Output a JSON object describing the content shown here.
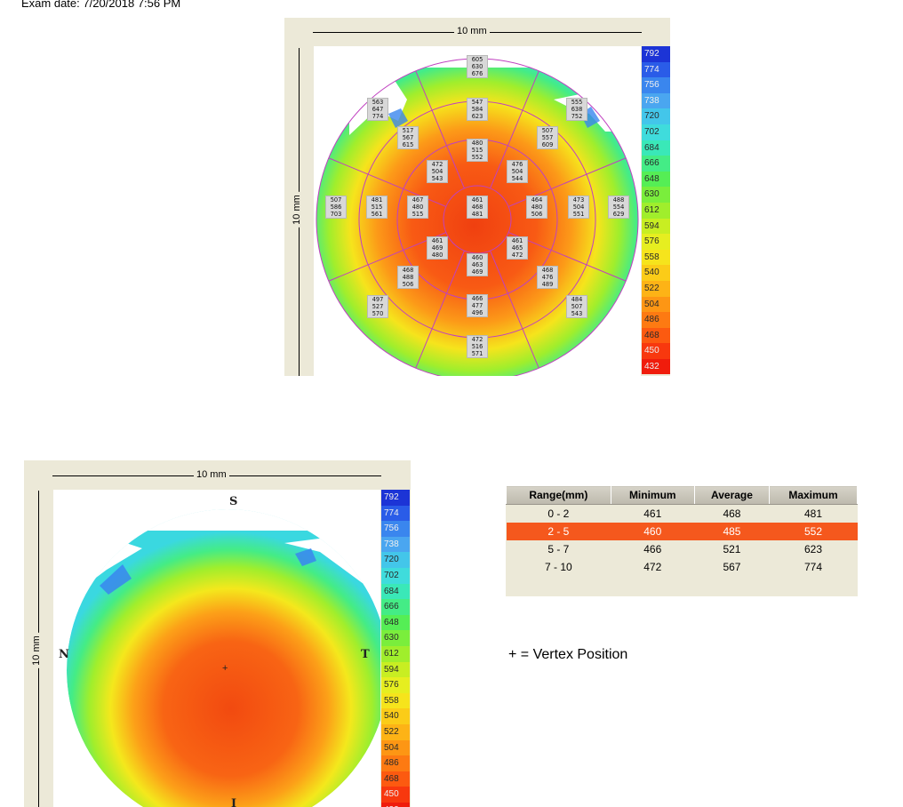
{
  "header": {
    "exam_date": "Exam date: 7/20/2018 7:56 PM"
  },
  "scale_label": "10 mm",
  "legend": {
    "values": [
      "792",
      "774",
      "756",
      "738",
      "720",
      "702",
      "684",
      "666",
      "648",
      "630",
      "612",
      "594",
      "576",
      "558",
      "540",
      "522",
      "504",
      "486",
      "468",
      "450",
      "432"
    ],
    "colors": [
      "#1c34d6",
      "#2a5ce8",
      "#3a86ee",
      "#4aa6f0",
      "#43c6ea",
      "#3fdcdc",
      "#3ae8b8",
      "#44ec86",
      "#55ee55",
      "#7aee3c",
      "#a0ee2c",
      "#c8ee22",
      "#e6ee20",
      "#f6e41c",
      "#fbcc18",
      "#fdb316",
      "#fd9614",
      "#fd7a12",
      "#fc5a10",
      "#f8380e",
      "#f01c0c"
    ]
  },
  "pachymetry_zones": [
    {
      "values": [
        "605",
        "630",
        "676"
      ]
    },
    {
      "values": [
        "547",
        "584",
        "623"
      ]
    },
    {
      "values": [
        "480",
        "515",
        "552"
      ]
    },
    {
      "values": [
        "461",
        "468",
        "481"
      ]
    },
    {
      "values": [
        "460",
        "463",
        "469"
      ]
    },
    {
      "values": [
        "466",
        "477",
        "496"
      ]
    },
    {
      "values": [
        "472",
        "516",
        "571"
      ]
    },
    {
      "values": [
        "555",
        "638",
        "752"
      ]
    },
    {
      "values": [
        "507",
        "557",
        "609"
      ]
    },
    {
      "values": [
        "476",
        "504",
        "544"
      ]
    },
    {
      "values": [
        "488",
        "554",
        "629"
      ]
    },
    {
      "values": [
        "473",
        "504",
        "551"
      ]
    },
    {
      "values": [
        "464",
        "480",
        "506"
      ]
    },
    {
      "values": [
        "484",
        "507",
        "543"
      ]
    },
    {
      "values": [
        "468",
        "476",
        "489"
      ]
    },
    {
      "values": [
        "461",
        "465",
        "472"
      ]
    },
    {
      "values": [
        "497",
        "527",
        "570"
      ]
    },
    {
      "values": [
        "468",
        "488",
        "506"
      ]
    },
    {
      "values": [
        "461",
        "469",
        "480"
      ]
    },
    {
      "values": [
        "507",
        "586",
        "703"
      ]
    },
    {
      "values": [
        "481",
        "515",
        "561"
      ]
    },
    {
      "values": [
        "467",
        "480",
        "515"
      ]
    },
    {
      "values": [
        "563",
        "647",
        "774"
      ]
    },
    {
      "values": [
        "517",
        "567",
        "615"
      ]
    },
    {
      "values": [
        "472",
        "504",
        "543"
      ]
    }
  ],
  "orientation": {
    "superior": "S",
    "inferior": "I",
    "nasal": "N",
    "temporal": "T",
    "vertex": "+"
  },
  "range_table": {
    "headers": [
      "Range(mm)",
      "Minimum",
      "Average",
      "Maximum"
    ],
    "rows": [
      [
        "0 - 2",
        "461",
        "468",
        "481"
      ],
      [
        "2 - 5",
        "460",
        "485",
        "552"
      ],
      [
        "5 - 7",
        "466",
        "521",
        "623"
      ],
      [
        "7 - 10",
        "472",
        "567",
        "774"
      ]
    ],
    "selected_row": 1,
    "selected_color": "#f5581d"
  },
  "vertex_note": "+ = Vertex Position"
}
